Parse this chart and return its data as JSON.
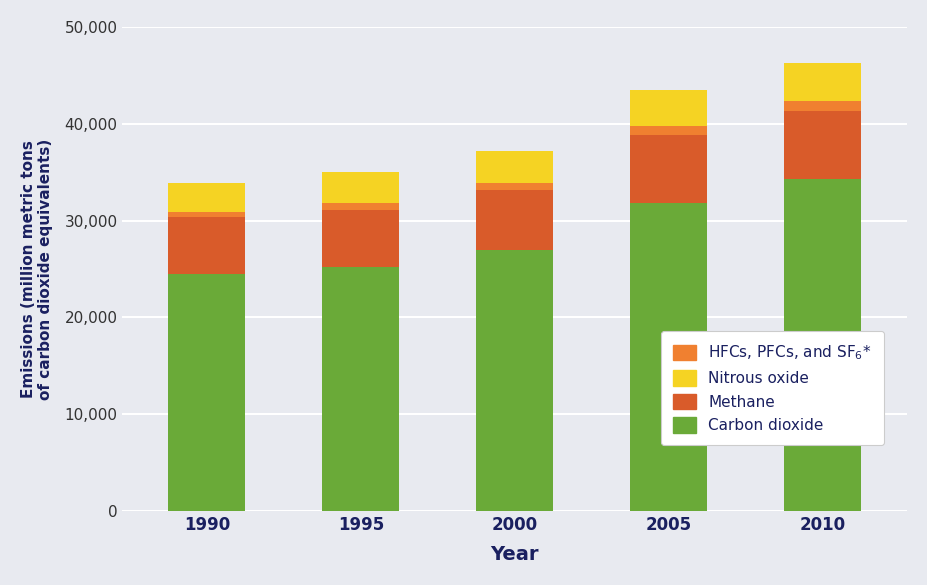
{
  "years": [
    "1990",
    "1995",
    "2000",
    "2005",
    "2010"
  ],
  "carbon_dioxide": [
    24500,
    25200,
    27000,
    31800,
    34300
  ],
  "methane": [
    5900,
    5900,
    6200,
    7000,
    7000
  ],
  "hfcs_pfcs_sf6": [
    500,
    700,
    700,
    1000,
    1000
  ],
  "nitrous_oxide": [
    3000,
    3200,
    3300,
    3700,
    4000
  ],
  "colors": {
    "carbon_dioxide": "#6aaa38",
    "methane": "#d95b2a",
    "hfcs_pfcs_sf6": "#f08030",
    "nitrous_oxide": "#f5d323"
  },
  "ylabel": "Emissions (million metric tons\nof carbon dioxide equivalents)",
  "xlabel": "Year",
  "ylim": [
    0,
    50000
  ],
  "yticks": [
    0,
    10000,
    20000,
    30000,
    40000,
    50000
  ],
  "background_color": "#e8eaf0",
  "legend_labels": [
    "HFCs, PFCs, and SF₆*",
    "Nitrous oxide",
    "Methane",
    "Carbon dioxide"
  ],
  "bar_width": 0.5
}
